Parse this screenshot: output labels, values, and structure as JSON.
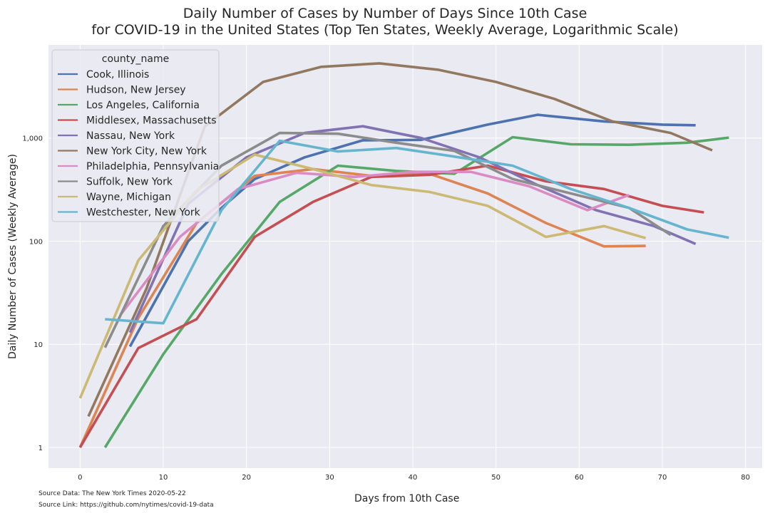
{
  "chart_data": {
    "type": "line",
    "title_lines": [
      "Daily Number of Cases by Number of Days Since 10th Case",
      "for COVID-19 in the United States (Top Ten States, Weekly Average, Logarithmic Scale)"
    ],
    "xlabel": "Days from 10th Case",
    "ylabel": "Daily Number of Cases (Weekly Average)",
    "yscale": "log",
    "xlim": [
      -3.8,
      82
    ],
    "ylim": [
      0.63,
      8000
    ],
    "x_ticks": [
      0,
      10,
      20,
      30,
      40,
      50,
      60,
      70,
      80
    ],
    "x_tick_labels": [
      "0",
      "10",
      "20",
      "30",
      "40",
      "50",
      "60",
      "70",
      "80"
    ],
    "y_ticks": [
      1,
      10,
      100,
      1000
    ],
    "y_tick_labels": [
      "1",
      "10",
      "100",
      "1,000"
    ],
    "grid": true,
    "legend_title": "county_name",
    "legend_location": "upper-left",
    "series": [
      {
        "name": "Cook, Illinois",
        "color": "#4c72b0",
        "points": [
          [
            6,
            9.5
          ],
          [
            13,
            100
          ],
          [
            17,
            210
          ],
          [
            21,
            400
          ],
          [
            27,
            650
          ],
          [
            34,
            950
          ],
          [
            41,
            960
          ],
          [
            49,
            1350
          ],
          [
            55,
            1680
          ],
          [
            63,
            1450
          ],
          [
            70,
            1350
          ],
          [
            74,
            1330
          ]
        ]
      },
      {
        "name": "Hudson, New Jersey",
        "color": "#dd8452",
        "points": [
          [
            0,
            1
          ],
          [
            7,
            18
          ],
          [
            14,
            150
          ],
          [
            21,
            430
          ],
          [
            28,
            500
          ],
          [
            35,
            430
          ],
          [
            42,
            450
          ],
          [
            49,
            290
          ],
          [
            56,
            150
          ],
          [
            63,
            89
          ],
          [
            68,
            90
          ]
        ]
      },
      {
        "name": "Los Angeles, California",
        "color": "#55a868",
        "points": [
          [
            3,
            1
          ],
          [
            10,
            8
          ],
          [
            17,
            48
          ],
          [
            24,
            240
          ],
          [
            31,
            540
          ],
          [
            38,
            480
          ],
          [
            45,
            450
          ],
          [
            52,
            1020
          ],
          [
            59,
            870
          ],
          [
            66,
            860
          ],
          [
            73,
            900
          ],
          [
            78,
            1010
          ]
        ]
      },
      {
        "name": "Middlesex, Massachusetts",
        "color": "#c44e52",
        "points": [
          [
            0,
            1
          ],
          [
            7,
            9.2
          ],
          [
            14,
            17.5
          ],
          [
            21,
            110
          ],
          [
            28,
            240
          ],
          [
            35,
            420
          ],
          [
            42,
            440
          ],
          [
            49,
            540
          ],
          [
            56,
            380
          ],
          [
            63,
            320
          ],
          [
            70,
            220
          ],
          [
            75,
            190
          ]
        ]
      },
      {
        "name": "Nassau, New York",
        "color": "#8172b3",
        "points": [
          [
            6,
            13
          ],
          [
            13,
            230
          ],
          [
            20,
            650
          ],
          [
            27,
            1120
          ],
          [
            34,
            1300
          ],
          [
            41,
            1000
          ],
          [
            48,
            650
          ],
          [
            55,
            350
          ],
          [
            62,
            200
          ],
          [
            69,
            140
          ],
          [
            74,
            94
          ]
        ]
      },
      {
        "name": "New York City, New York",
        "color": "#937860",
        "points": [
          [
            1,
            2
          ],
          [
            8,
            35
          ],
          [
            15,
            1300
          ],
          [
            22,
            3500
          ],
          [
            29,
            4900
          ],
          [
            36,
            5300
          ],
          [
            43,
            4600
          ],
          [
            50,
            3500
          ],
          [
            57,
            2400
          ],
          [
            64,
            1450
          ],
          [
            71,
            1120
          ],
          [
            76,
            760
          ]
        ]
      },
      {
        "name": "Philadelphia, Pennsylvania",
        "color": "#da8bc3",
        "points": [
          [
            5,
            20
          ],
          [
            12,
            110
          ],
          [
            19,
            320
          ],
          [
            26,
            460
          ],
          [
            33,
            420
          ],
          [
            40,
            470
          ],
          [
            47,
            470
          ],
          [
            54,
            340
          ],
          [
            61,
            200
          ],
          [
            66,
            280
          ]
        ]
      },
      {
        "name": "Suffolk, New York",
        "color": "#8c8c8c",
        "points": [
          [
            3,
            9.3
          ],
          [
            10,
            140
          ],
          [
            17,
            540
          ],
          [
            24,
            1120
          ],
          [
            31,
            1100
          ],
          [
            38,
            900
          ],
          [
            45,
            750
          ],
          [
            52,
            400
          ],
          [
            59,
            290
          ],
          [
            66,
            210
          ],
          [
            71,
            115
          ]
        ]
      },
      {
        "name": "Wayne, Michigan",
        "color": "#ccb974",
        "points": [
          [
            0,
            3
          ],
          [
            7,
            65
          ],
          [
            14,
            310
          ],
          [
            21,
            690
          ],
          [
            28,
            500
          ],
          [
            35,
            350
          ],
          [
            42,
            300
          ],
          [
            49,
            220
          ],
          [
            56,
            110
          ],
          [
            63,
            140
          ],
          [
            68,
            107
          ]
        ]
      },
      {
        "name": "Westchester, New York",
        "color": "#64b5cd",
        "points": [
          [
            3,
            17.5
          ],
          [
            10,
            16
          ],
          [
            17,
            200
          ],
          [
            24,
            940
          ],
          [
            31,
            740
          ],
          [
            38,
            800
          ],
          [
            45,
            660
          ],
          [
            52,
            540
          ],
          [
            59,
            320
          ],
          [
            66,
            210
          ],
          [
            73,
            130
          ],
          [
            78,
            108
          ]
        ]
      }
    ]
  },
  "footer": {
    "source_data": "Source Data: The New York Times 2020-05-22",
    "source_link": "Source Link: https://github.com/nytimes/covid-19-data"
  },
  "colors": {
    "plot_background": "#eaeaf2",
    "grid": "#ffffff",
    "text": "#262626"
  }
}
